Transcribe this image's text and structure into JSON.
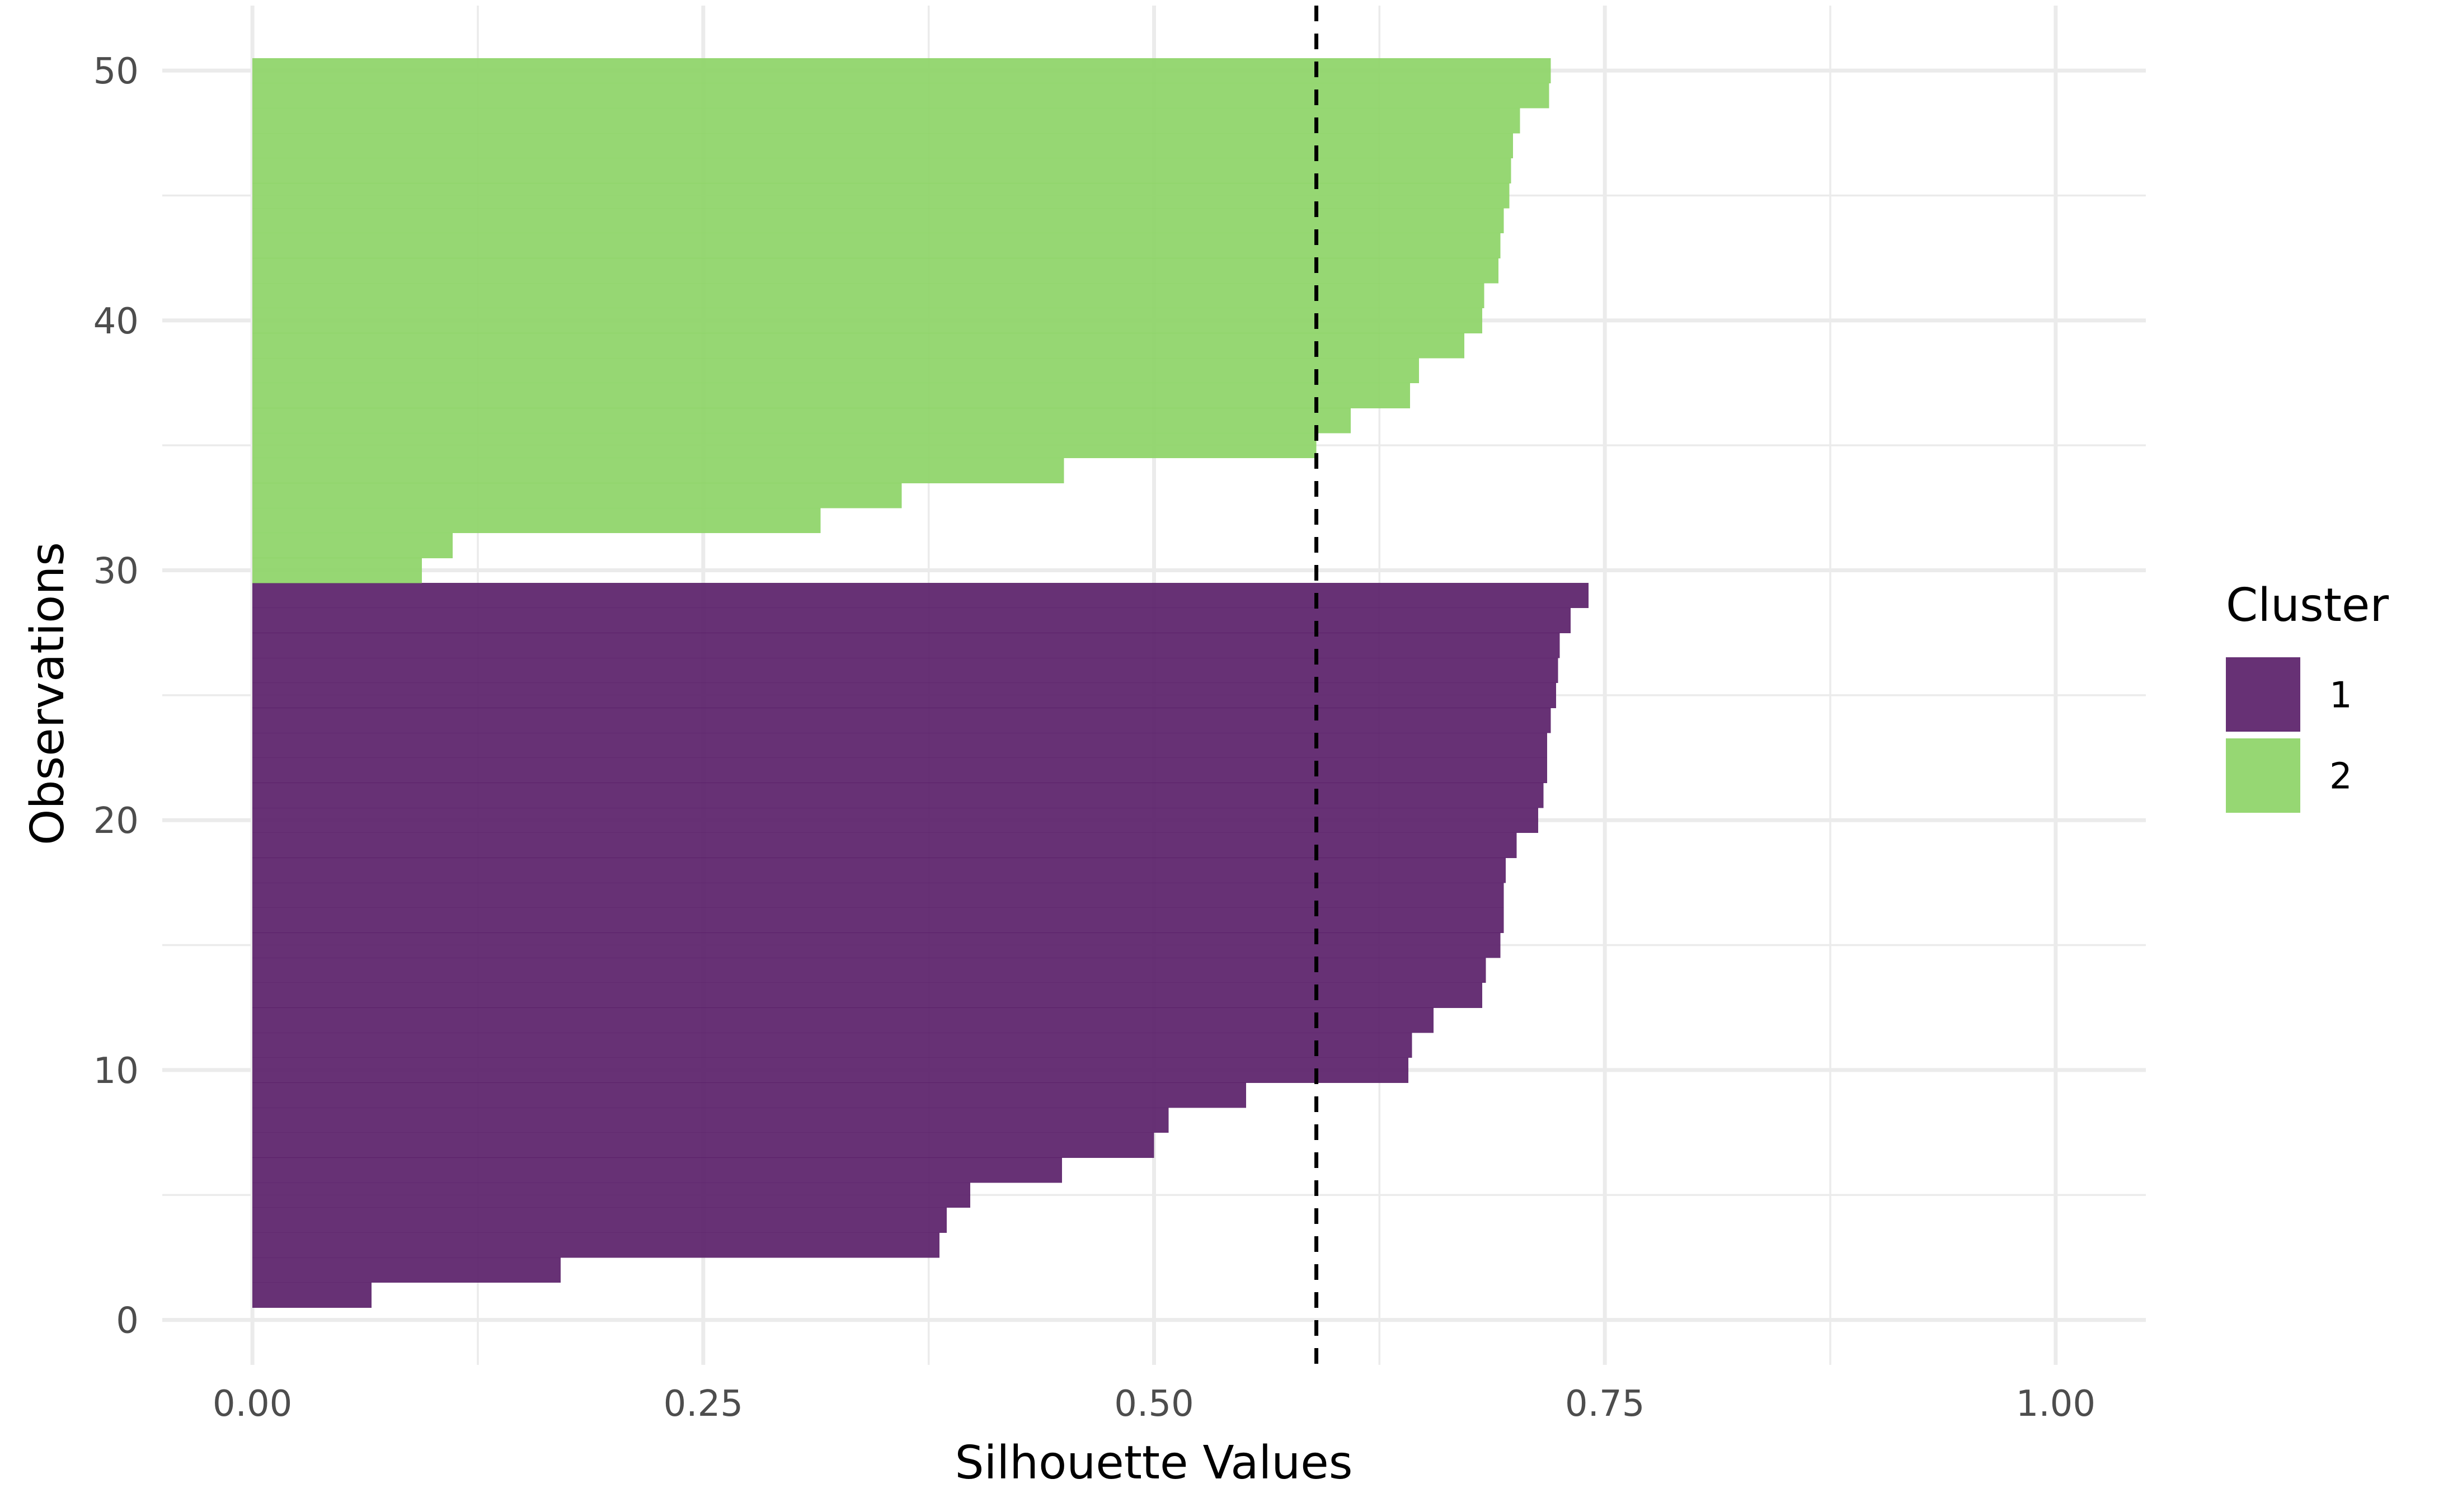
{
  "chart_data": {
    "type": "bar",
    "orientation": "horizontal",
    "title": "",
    "xlabel": "Silhouette Values",
    "ylabel": "Observations",
    "xlim": [
      -0.05,
      1.05
    ],
    "ylim": [
      -1.8,
      52.6
    ],
    "x_ticks": [
      0.0,
      0.25,
      0.5,
      0.75,
      1.0
    ],
    "x_tick_labels": [
      "0.00",
      "0.25",
      "0.50",
      "0.75",
      "1.00"
    ],
    "y_ticks": [
      0,
      10,
      20,
      30,
      40,
      50
    ],
    "y_tick_labels": [
      "0",
      "10",
      "20",
      "30",
      "40",
      "50"
    ],
    "grid": true,
    "legend": {
      "title": "Cluster",
      "position": "right"
    },
    "reference_line": {
      "x": 0.59,
      "style": "dashed",
      "color": "#000000"
    },
    "series": [
      {
        "name": "1",
        "color": "#5a2069",
        "observations": [
          1,
          2,
          3,
          4,
          5,
          6,
          7,
          8,
          9,
          10,
          11,
          12,
          13,
          14,
          15,
          16,
          17,
          18,
          19,
          20,
          21,
          22,
          23,
          24,
          25,
          26,
          27,
          28,
          29
        ],
        "values": [
          0.066,
          0.171,
          0.381,
          0.385,
          0.398,
          0.449,
          0.5,
          0.508,
          0.551,
          0.641,
          0.643,
          0.655,
          0.682,
          0.684,
          0.692,
          0.694,
          0.694,
          0.695,
          0.701,
          0.713,
          0.716,
          0.718,
          0.718,
          0.72,
          0.723,
          0.724,
          0.725,
          0.731,
          0.741
        ]
      },
      {
        "name": "2",
        "color": "#8dd467",
        "observations": [
          30,
          31,
          32,
          33,
          34,
          35,
          36,
          37,
          38,
          39,
          40,
          41,
          42,
          43,
          44,
          45,
          46,
          47,
          48,
          49,
          50
        ],
        "values": [
          0.094,
          0.111,
          0.315,
          0.36,
          0.45,
          0.59,
          0.609,
          0.642,
          0.647,
          0.672,
          0.682,
          0.683,
          0.691,
          0.692,
          0.694,
          0.697,
          0.698,
          0.699,
          0.703,
          0.719,
          0.72
        ]
      }
    ]
  }
}
